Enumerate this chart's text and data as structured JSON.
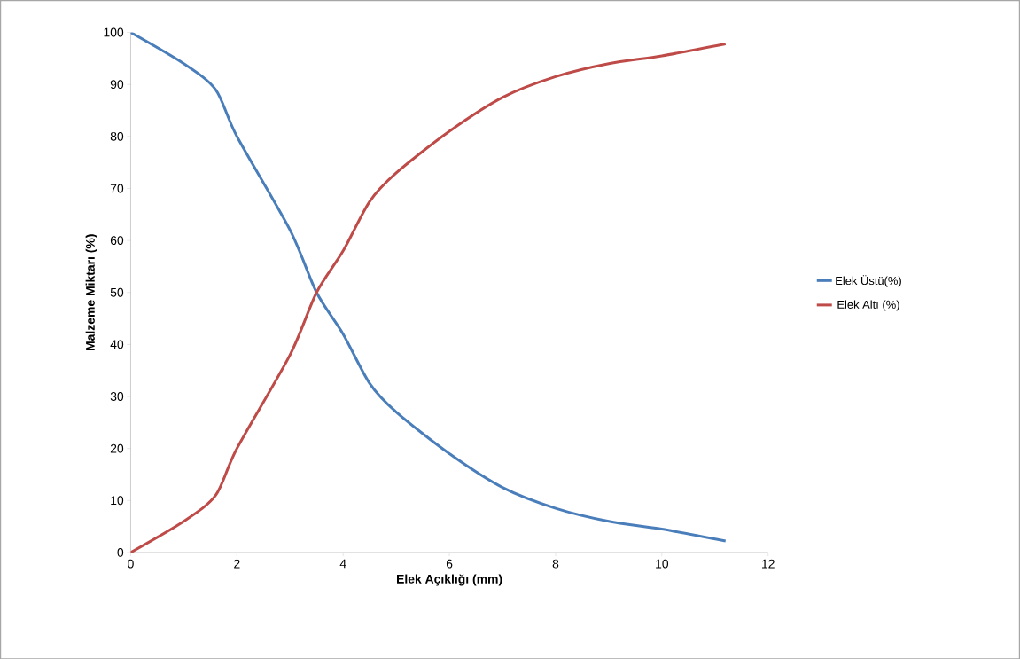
{
  "chart_data": {
    "type": "line",
    "xlabel": "Elek Açıklığı (mm)",
    "ylabel": "Malzeme Miktarı (%)",
    "x": [
      0,
      1,
      1.6,
      2,
      3,
      3.5,
      4,
      4.5,
      5,
      6,
      7,
      8,
      9,
      10,
      11.2
    ],
    "series": [
      {
        "name": "Elek Üstü(%)",
        "color": "#4a7ebb",
        "values": [
          100,
          94,
          89,
          80,
          62,
          50,
          42,
          32.5,
          27,
          19,
          12.5,
          8.5,
          6,
          4.5,
          2.2
        ]
      },
      {
        "name": "Elek Altı (%)",
        "color": "#be4b48",
        "values": [
          0,
          6,
          11,
          20,
          38,
          50,
          58,
          67.5,
          73,
          81,
          87.5,
          91.5,
          94,
          95.5,
          97.8
        ]
      }
    ],
    "xlim": [
      0,
      12
    ],
    "xticks": [
      0,
      2,
      4,
      6,
      8,
      10,
      12
    ],
    "ylim": [
      0,
      100
    ],
    "yticks": [
      0,
      10,
      20,
      30,
      40,
      50,
      60,
      70,
      80,
      90,
      100
    ],
    "grid": false,
    "legend": "right",
    "marker": "none",
    "line_style": "solid"
  }
}
